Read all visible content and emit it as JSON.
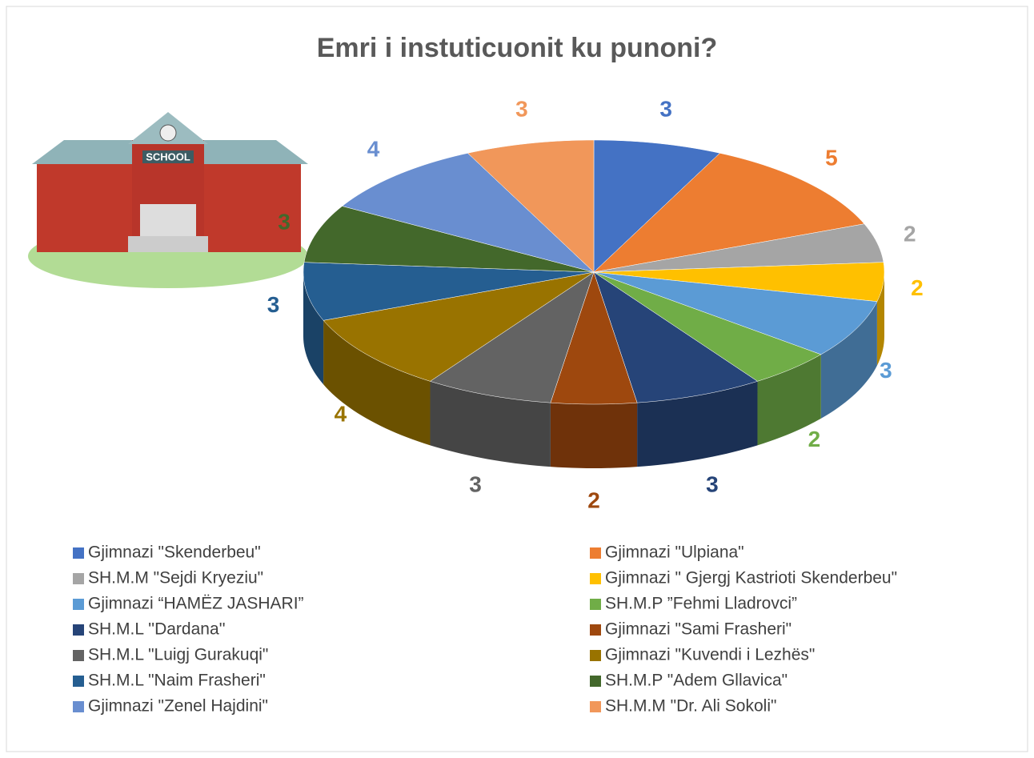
{
  "chart_data": {
    "type": "pie",
    "title": "Emri i instuticuonit ku punoni?",
    "categories": [
      "Gjimnazi \"Skenderbeu\"",
      "Gjimnazi \"Ulpiana\"",
      "SH.M.M \"Sejdi Kryeziu\"",
      "Gjimnazi \" Gjergj Kastrioti Skenderbeu\"",
      "Gjimnazi “HAMËZ JASHARI”",
      "SH.M.P ”Fehmi Lladrovci”",
      "SH.M.L ''Dardana''",
      "Gjimnazi \"Sami Frasheri\"",
      "SH.M.L \"Luigj Gurakuqi\"",
      "Gjimnazi \"Kuvendi i Lezhës\"",
      "SH.M.L \"Naim Frasheri\"",
      "SH.M.P \"Adem Gllavica\"",
      "Gjimnazi \"Zenel Hajdini\"",
      "SH.M.M \"Dr. Ali Sokoli\""
    ],
    "values": [
      3,
      5,
      2,
      2,
      3,
      2,
      3,
      2,
      3,
      4,
      3,
      3,
      4,
      3
    ],
    "colors": [
      "#4472c4",
      "#ed7d31",
      "#a5a5a5",
      "#ffc000",
      "#5b9bd5",
      "#70ad47",
      "#264478",
      "#9e480e",
      "#636363",
      "#997300",
      "#255e91",
      "#43682b",
      "#698ed0",
      "#f1975a"
    ]
  }
}
